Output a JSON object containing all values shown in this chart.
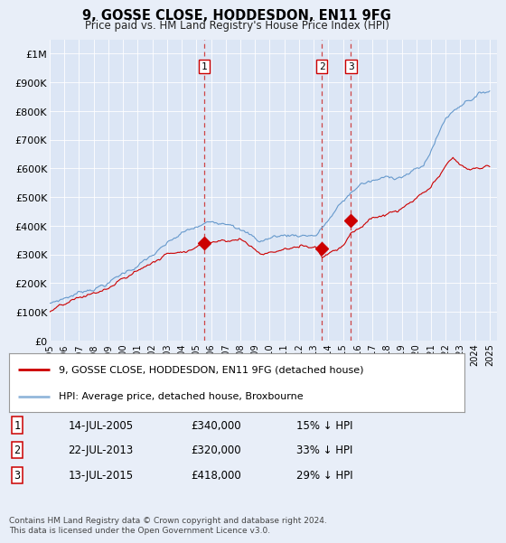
{
  "title": "9, GOSSE CLOSE, HODDESDON, EN11 9FG",
  "subtitle": "Price paid vs. HM Land Registry's House Price Index (HPI)",
  "footer": "Contains HM Land Registry data © Crown copyright and database right 2024.\nThis data is licensed under the Open Government Licence v3.0.",
  "legend_line1": "9, GOSSE CLOSE, HODDESDON, EN11 9FG (detached house)",
  "legend_line2": "HPI: Average price, detached house, Broxbourne",
  "transactions": [
    {
      "num": 1,
      "date": "14-JUL-2005",
      "price": "£340,000",
      "hpi": "15% ↓ HPI",
      "year": 2005.54
    },
    {
      "num": 2,
      "date": "22-JUL-2013",
      "price": "£320,000",
      "hpi": "33% ↓ HPI",
      "year": 2013.55
    },
    {
      "num": 3,
      "date": "13-JUL-2015",
      "price": "£418,000",
      "hpi": "29% ↓ HPI",
      "year": 2015.54
    }
  ],
  "transaction_prices": [
    340000,
    320000,
    418000
  ],
  "background_color": "#e8eef8",
  "plot_bg": "#dce6f5",
  "red_line_color": "#cc0000",
  "blue_line_color": "#6699cc",
  "vline_color": "#cc3333",
  "ylim": [
    0,
    1050000
  ],
  "xlim": [
    1995.0,
    2025.5
  ],
  "yticks": [
    0,
    100000,
    200000,
    300000,
    400000,
    500000,
    600000,
    700000,
    800000,
    900000,
    1000000
  ],
  "ytick_labels": [
    "£0",
    "£100K",
    "£200K",
    "£300K",
    "£400K",
    "£500K",
    "£600K",
    "£700K",
    "£800K",
    "£900K",
    "£1M"
  ]
}
